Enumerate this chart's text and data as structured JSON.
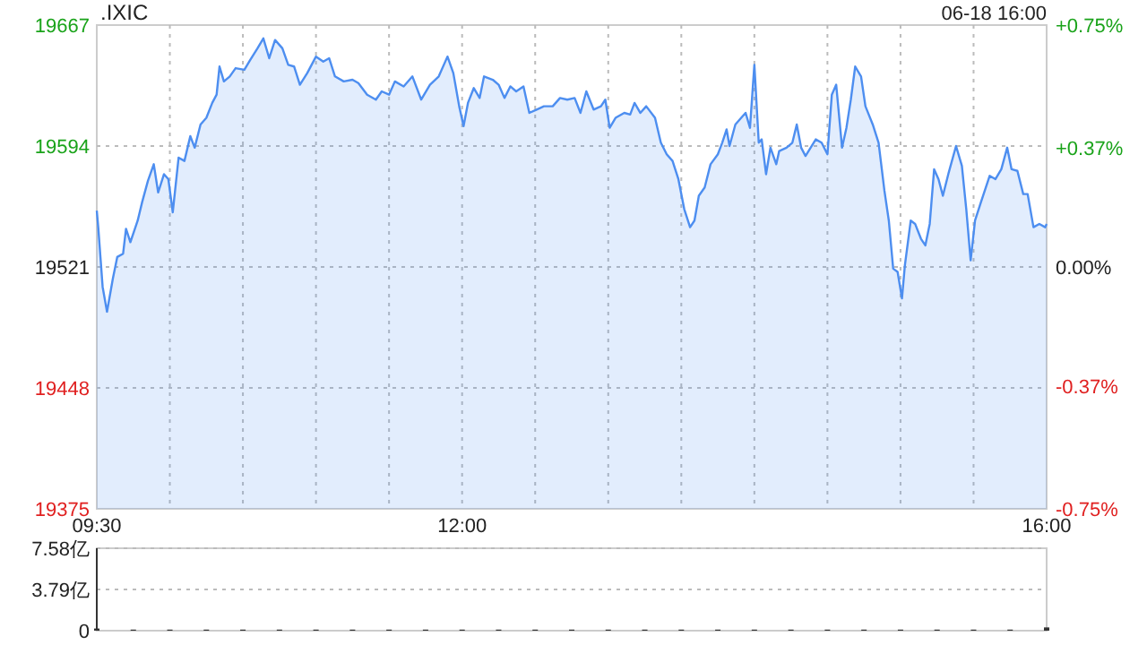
{
  "chart_data": [
    {
      "type": "area",
      "title": ".IXIC",
      "annotations": [
        "06-18 16:00"
      ],
      "x": [
        9.5,
        9.51,
        9.54,
        9.57,
        9.61,
        9.64,
        9.68,
        9.7,
        9.73,
        9.78,
        9.81,
        9.85,
        9.89,
        9.92,
        9.96,
        9.99,
        10.02,
        10.06,
        10.1,
        10.14,
        10.17,
        10.21,
        10.25,
        10.29,
        10.32,
        10.34,
        10.37,
        10.41,
        10.45,
        10.51,
        10.55,
        10.6,
        10.64,
        10.68,
        10.72,
        10.77,
        10.81,
        10.85,
        10.89,
        10.94,
        11.0,
        11.05,
        11.09,
        11.13,
        11.19,
        11.25,
        11.29,
        11.35,
        11.41,
        11.45,
        11.5,
        11.54,
        11.6,
        11.66,
        11.72,
        11.78,
        11.84,
        11.9,
        11.94,
        11.98,
        12.01,
        12.04,
        12.08,
        12.12,
        12.15,
        12.21,
        12.25,
        12.29,
        12.33,
        12.37,
        12.42,
        12.46,
        12.51,
        12.56,
        12.62,
        12.67,
        12.72,
        12.77,
        12.81,
        12.85,
        12.9,
        12.95,
        12.98,
        13.01,
        13.05,
        13.11,
        13.15,
        13.18,
        13.22,
        13.26,
        13.32,
        13.36,
        13.4,
        13.44,
        13.48,
        13.52,
        13.56,
        13.59,
        13.62,
        13.66,
        13.7,
        13.75,
        13.78,
        13.81,
        13.83,
        13.87,
        13.91,
        13.94,
        13.97,
        14.0,
        14.03,
        14.05,
        14.08,
        14.11,
        14.15,
        14.17,
        14.22,
        14.26,
        14.29,
        14.32,
        14.35,
        14.42,
        14.46,
        14.5,
        14.53,
        14.56,
        14.6,
        14.63,
        14.66,
        14.69,
        14.73,
        14.76,
        14.81,
        14.85,
        14.89,
        14.92,
        14.95,
        14.98,
        15.01,
        15.03,
        15.07,
        15.1,
        15.14,
        15.17,
        15.2,
        15.23,
        15.26,
        15.29,
        15.33,
        15.38,
        15.42,
        15.45,
        15.48,
        15.51,
        15.55,
        15.61,
        15.65,
        15.69,
        15.73,
        15.76,
        15.8,
        15.84,
        15.87,
        15.91,
        15.95,
        15.99,
        16.0
      ],
      "series": [
        {
          "color": "#4d8ef0",
          "values": [
            19555,
            19545,
            19509,
            19494,
            19514,
            19527,
            19529,
            19544,
            19536,
            19549,
            19560,
            19573,
            19583,
            19566,
            19577,
            19574,
            19554,
            19587,
            19585,
            19600,
            19593,
            19607,
            19611,
            19620,
            19625,
            19642,
            19633,
            19636,
            19641,
            19640,
            19646,
            19653,
            19659,
            19647,
            19658,
            19653,
            19643,
            19642,
            19631,
            19638,
            19648,
            19645,
            19647,
            19636,
            19633,
            19634,
            19632,
            19625,
            19622,
            19627,
            19625,
            19633,
            19630,
            19636,
            19622,
            19631,
            19636,
            19648,
            19638,
            19618,
            19606,
            19620,
            19629,
            19623,
            19636,
            19634,
            19631,
            19623,
            19630,
            19627,
            19630,
            19614,
            19616,
            19618,
            19618,
            19623,
            19622,
            19623,
            19614,
            19627,
            19616,
            19618,
            19622,
            19605,
            19611,
            19614,
            19613,
            19620,
            19614,
            19618,
            19611,
            19596,
            19589,
            19585,
            19574,
            19556,
            19545,
            19549,
            19564,
            19569,
            19583,
            19589,
            19596,
            19604,
            19594,
            19607,
            19611,
            19614,
            19605,
            19643,
            19596,
            19598,
            19577,
            19593,
            19583,
            19591,
            19593,
            19596,
            19607,
            19593,
            19588,
            19598,
            19596,
            19589,
            19625,
            19631,
            19593,
            19605,
            19622,
            19642,
            19636,
            19618,
            19607,
            19596,
            19567,
            19549,
            19520,
            19518,
            19502,
            19522,
            19549,
            19547,
            19538,
            19534,
            19547,
            19580,
            19574,
            19564,
            19578,
            19594,
            19582,
            19556,
            19525,
            19549,
            19560,
            19576,
            19574,
            19580,
            19593,
            19580,
            19579,
            19565,
            19565,
            19545,
            19547,
            19545,
            19547
          ]
        }
      ],
      "xlim": [
        9.5,
        16
      ],
      "xticks": [
        {
          "value": 9.5,
          "label": "09:30"
        },
        {
          "value": 10,
          "label": null
        },
        {
          "value": 10.5,
          "label": null
        },
        {
          "value": 11,
          "label": null
        },
        {
          "value": 11.5,
          "label": null
        },
        {
          "value": 12,
          "label": "12:00"
        },
        {
          "value": 12.5,
          "label": null
        },
        {
          "value": 13,
          "label": null
        },
        {
          "value": 13.5,
          "label": null
        },
        {
          "value": 14,
          "label": null
        },
        {
          "value": 14.5,
          "label": null
        },
        {
          "value": 15,
          "label": null
        },
        {
          "value": 15.5,
          "label": null
        },
        {
          "value": 16,
          "label": "16:00"
        }
      ],
      "ylim": [
        19375,
        19667
      ],
      "yticks": [
        19375,
        19448,
        19521,
        19594,
        19667
      ],
      "y2lim": [
        -0.75,
        0.75
      ],
      "y2ticks": [
        {
          "value": -0.75,
          "label": "-0.75%"
        },
        {
          "value": -0.37,
          "label": "-0.37%"
        },
        {
          "value": 0,
          "label": "0.00%"
        },
        {
          "value": 0.37,
          "label": "+0.37%"
        },
        {
          "value": 0.75,
          "label": "+0.75%"
        }
      ],
      "grid": true
    },
    {
      "type": "bar",
      "color": "#333333",
      "x": [
        9.5,
        9.75,
        10,
        10.25,
        10.5,
        10.75,
        11,
        11.25,
        11.5,
        11.75,
        12,
        12.25,
        12.5,
        12.75,
        13,
        13.25,
        13.5,
        13.75,
        14,
        14.25,
        14.5,
        14.75,
        15,
        15.25,
        15.5,
        15.75,
        16
      ],
      "values": [
        0.2,
        0.1,
        0.1,
        0.1,
        0.1,
        0.1,
        0.1,
        0.1,
        0.1,
        0.1,
        0.1,
        0.1,
        0.1,
        0.1,
        0.1,
        0.1,
        0.1,
        0.1,
        0.1,
        0.1,
        0.1,
        0.1,
        0.1,
        0.1,
        0.1,
        0.1,
        0.3
      ],
      "xlim": [
        9.5,
        16
      ],
      "ylim": [
        0,
        7.58
      ],
      "yticks": [
        0,
        {
          "value": 3.79,
          "label": "3.79亿"
        },
        {
          "value": 7.58,
          "label": "7.58亿"
        }
      ],
      "grid": "y",
      "tick_labels": "y"
    }
  ]
}
